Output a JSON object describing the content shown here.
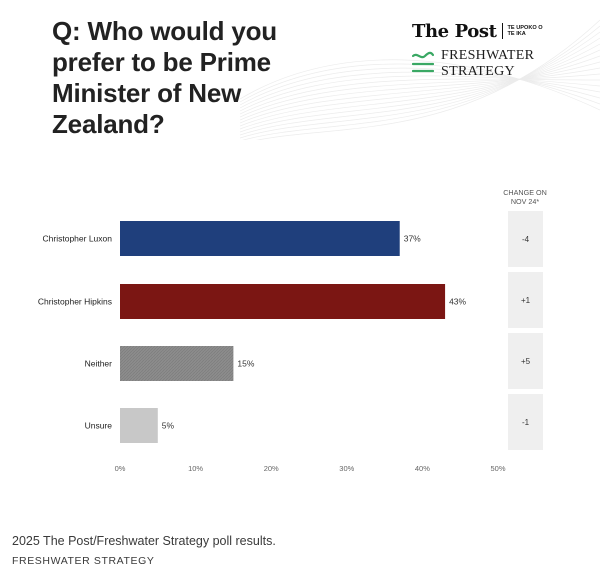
{
  "header": {
    "title": "Q: Who would you prefer to be Prime Minister of New Zealand?",
    "logo_post_name": "The Post",
    "logo_post_subtitle": "TE UPOKO O TE IKA",
    "logo_fw_line1": "FRESHWATER",
    "logo_fw_line2": "STRATEGY"
  },
  "change_header": "CHANGE ON NOV 24*",
  "colors": {
    "luxon": "#1f3f7c",
    "hipkins": "#7b1613",
    "neither": "#8c8c8c",
    "unsure": "#c8c8c8",
    "freshwater_green": "#3aa864"
  },
  "chart_data": {
    "type": "bar",
    "orientation": "horizontal",
    "categories": [
      "Christopher Luxon",
      "Christopher Hipkins",
      "Neither",
      "Unsure"
    ],
    "values": [
      37,
      43,
      15,
      5
    ],
    "value_labels": [
      "37%",
      "43%",
      "15%",
      "5%"
    ],
    "change_labels": [
      "-4",
      "+1",
      "+5",
      "-1"
    ],
    "xlim": [
      0,
      50
    ],
    "xticks": [
      0,
      10,
      20,
      30,
      40,
      50
    ],
    "xtick_labels": [
      "0%",
      "10%",
      "20%",
      "30%",
      "40%",
      "50%"
    ],
    "bar_colors": [
      "#1f3f7c",
      "#7b1613",
      "#8c8c8c",
      "#c8c8c8"
    ],
    "grid": false,
    "legend": "none"
  },
  "footer": {
    "caption": "2025 The Post/Freshwater Strategy poll results.",
    "source": "FRESHWATER STRATEGY"
  }
}
